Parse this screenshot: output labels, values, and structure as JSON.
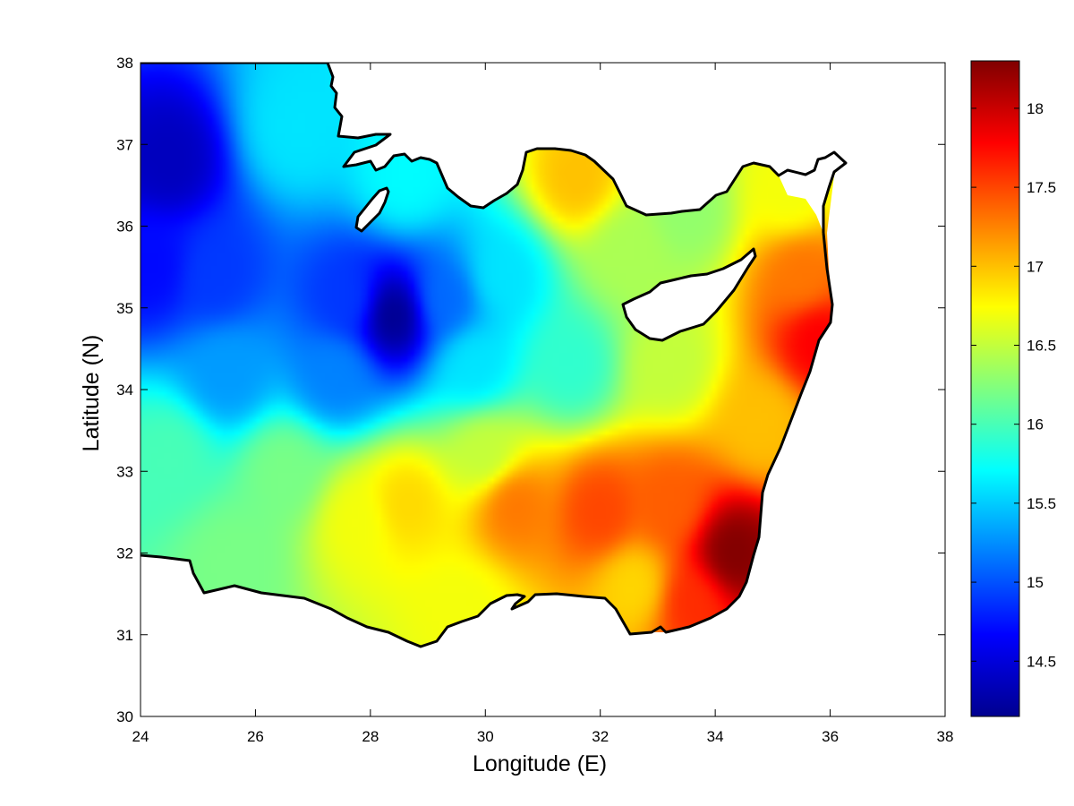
{
  "chart_data": {
    "type": "heatmap",
    "title": "",
    "xlabel": "Longitude (E)",
    "ylabel": "Latitude (N)",
    "xlim": [
      24,
      38
    ],
    "ylim": [
      30,
      38
    ],
    "x_ticks": [
      "24",
      "26",
      "28",
      "30",
      "32",
      "34",
      "36",
      "38"
    ],
    "y_ticks": [
      "30",
      "31",
      "32",
      "33",
      "34",
      "35",
      "36",
      "37",
      "38"
    ],
    "colorbar": {
      "colormap": "jet",
      "range": [
        14.15,
        18.3
      ],
      "ticks": [
        "14.5",
        "15",
        "15.5",
        "16",
        "16.5",
        "17",
        "17.5",
        "18"
      ]
    },
    "coastline_color": "#000000",
    "land_color": "#ffffff",
    "field_hotspots": [
      {
        "lon": 24.5,
        "lat": 36.8,
        "value": 14.4
      },
      {
        "lon": 24.2,
        "lat": 35.5,
        "value": 14.7
      },
      {
        "lon": 25.3,
        "lat": 35.4,
        "value": 14.9
      },
      {
        "lon": 28.4,
        "lat": 34.9,
        "value": 14.2
      },
      {
        "lon": 27.6,
        "lat": 35.1,
        "value": 14.9
      },
      {
        "lon": 29.3,
        "lat": 35.1,
        "value": 15.1
      },
      {
        "lon": 27.4,
        "lat": 34.2,
        "value": 15.2
      },
      {
        "lon": 26.7,
        "lat": 37.2,
        "value": 15.6
      },
      {
        "lon": 28.6,
        "lat": 36.6,
        "value": 15.7
      },
      {
        "lon": 30.3,
        "lat": 35.4,
        "value": 15.6
      },
      {
        "lon": 29.8,
        "lat": 34.3,
        "value": 15.6
      },
      {
        "lon": 31.5,
        "lat": 34.3,
        "value": 15.9
      },
      {
        "lon": 25.5,
        "lat": 34.2,
        "value": 15.3
      },
      {
        "lon": 24.5,
        "lat": 33.2,
        "value": 16.0
      },
      {
        "lon": 26.5,
        "lat": 33.0,
        "value": 16.2
      },
      {
        "lon": 27.8,
        "lat": 32.4,
        "value": 16.7
      },
      {
        "lon": 28.6,
        "lat": 32.6,
        "value": 16.9
      },
      {
        "lon": 30.5,
        "lat": 32.6,
        "value": 17.3
      },
      {
        "lon": 32.0,
        "lat": 32.5,
        "value": 17.5
      },
      {
        "lon": 33.2,
        "lat": 32.6,
        "value": 17.4
      },
      {
        "lon": 34.3,
        "lat": 32.0,
        "value": 18.3
      },
      {
        "lon": 33.6,
        "lat": 31.4,
        "value": 17.6
      },
      {
        "lon": 32.6,
        "lat": 31.6,
        "value": 16.9
      },
      {
        "lon": 29.6,
        "lat": 31.3,
        "value": 16.7
      },
      {
        "lon": 25.6,
        "lat": 31.9,
        "value": 16.2
      },
      {
        "lon": 35.8,
        "lat": 34.6,
        "value": 17.8
      },
      {
        "lon": 35.5,
        "lat": 35.4,
        "value": 17.3
      },
      {
        "lon": 35.3,
        "lat": 36.4,
        "value": 16.7
      },
      {
        "lon": 34.8,
        "lat": 33.6,
        "value": 17.0
      },
      {
        "lon": 33.2,
        "lat": 34.3,
        "value": 16.5
      },
      {
        "lon": 32.5,
        "lat": 35.7,
        "value": 16.4
      },
      {
        "lon": 31.6,
        "lat": 36.6,
        "value": 17.0
      },
      {
        "lon": 33.5,
        "lat": 36.2,
        "value": 16.3
      },
      {
        "lon": 30.0,
        "lat": 33.2,
        "value": 16.5
      }
    ],
    "field_background_value": 16.0
  }
}
